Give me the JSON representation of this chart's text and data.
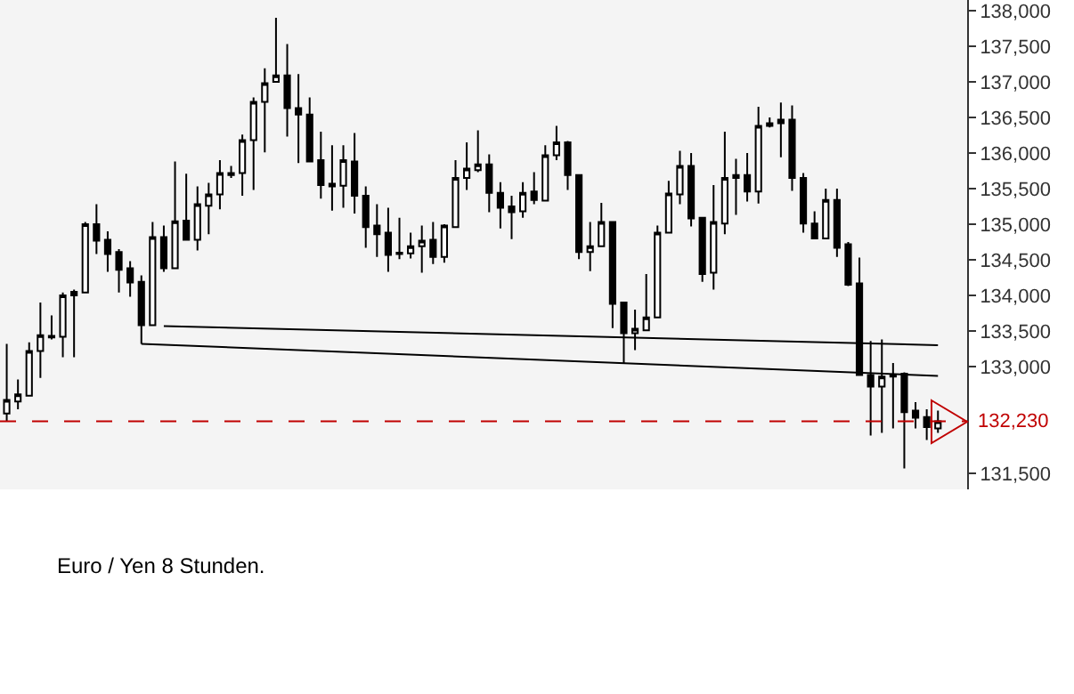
{
  "chart_data": {
    "type": "candlestick",
    "categories": [
      null,
      null,
      null,
      null,
      null,
      null,
      null,
      null,
      null,
      null,
      null,
      null,
      null,
      null,
      null,
      null,
      null,
      null,
      null,
      null,
      null,
      null,
      null,
      null,
      null,
      null,
      null,
      null,
      null,
      null,
      null,
      null,
      null,
      null,
      null,
      null,
      null,
      null,
      null,
      null,
      null,
      null,
      null,
      null,
      null,
      null,
      null,
      null,
      null,
      null,
      null,
      null,
      null,
      null,
      null,
      null,
      null,
      null,
      null,
      null,
      null,
      null,
      null,
      null,
      null,
      null,
      null,
      null,
      null,
      null,
      null,
      null,
      null,
      null,
      null,
      null,
      null,
      null,
      null,
      null,
      null,
      null,
      null,
      null
    ],
    "ohlc": [
      [
        132340,
        133320,
        132230,
        132530
      ],
      [
        132510,
        132820,
        132400,
        132610
      ],
      [
        132590,
        133340,
        132590,
        133220
      ],
      [
        133220,
        133900,
        132840,
        133440
      ],
      [
        133410,
        133720,
        133380,
        133430
      ],
      [
        133420,
        134040,
        133130,
        134000
      ],
      [
        134000,
        134080,
        133130,
        134050
      ],
      [
        134040,
        135030,
        134040,
        135000
      ],
      [
        135000,
        135280,
        134580,
        134770
      ],
      [
        134780,
        134900,
        134330,
        134580
      ],
      [
        134610,
        134650,
        134040,
        134360
      ],
      [
        134380,
        134480,
        133980,
        134180
      ],
      [
        134190,
        134280,
        133320,
        133580
      ],
      [
        133580,
        135030,
        133580,
        134820
      ],
      [
        134820,
        134980,
        134330,
        134380
      ],
      [
        134380,
        135880,
        134380,
        135040
      ],
      [
        135050,
        135710,
        134780,
        134780
      ],
      [
        134780,
        135530,
        134630,
        135280
      ],
      [
        135260,
        135580,
        134860,
        135420
      ],
      [
        135420,
        135900,
        135210,
        135720
      ],
      [
        135690,
        135820,
        135650,
        135720
      ],
      [
        135720,
        136260,
        135400,
        136180
      ],
      [
        136180,
        136780,
        135480,
        136720
      ],
      [
        136720,
        137190,
        136010,
        136980
      ],
      [
        137000,
        137900,
        137000,
        137090
      ],
      [
        137090,
        137530,
        136230,
        136630
      ],
      [
        136630,
        137110,
        135860,
        136540
      ],
      [
        136540,
        136780,
        135880,
        135880
      ],
      [
        135900,
        136300,
        135360,
        135550
      ],
      [
        135570,
        136110,
        135190,
        135530
      ],
      [
        135540,
        136110,
        135230,
        135900
      ],
      [
        135880,
        136280,
        135150,
        135400
      ],
      [
        135400,
        135530,
        134670,
        134960
      ],
      [
        134980,
        135280,
        134540,
        134860
      ],
      [
        134880,
        135230,
        134330,
        134570
      ],
      [
        134580,
        135090,
        134510,
        134600
      ],
      [
        134590,
        134880,
        134520,
        134690
      ],
      [
        134690,
        134980,
        134320,
        134770
      ],
      [
        134780,
        135030,
        134440,
        134540
      ],
      [
        134540,
        135000,
        134460,
        134980
      ],
      [
        134960,
        135900,
        134960,
        135650
      ],
      [
        135650,
        136150,
        135480,
        135780
      ],
      [
        135760,
        136320,
        135730,
        135840
      ],
      [
        135840,
        135980,
        135170,
        135440
      ],
      [
        135440,
        135590,
        134940,
        135230
      ],
      [
        135250,
        135400,
        134790,
        135170
      ],
      [
        135180,
        135590,
        135090,
        135440
      ],
      [
        135460,
        135730,
        135280,
        135340
      ],
      [
        135330,
        136110,
        135330,
        135970
      ],
      [
        135970,
        136380,
        135900,
        136150
      ],
      [
        136150,
        136170,
        135480,
        135690
      ],
      [
        135690,
        135690,
        134510,
        134610
      ],
      [
        134610,
        135030,
        134340,
        134690
      ],
      [
        134690,
        135300,
        134690,
        135030
      ],
      [
        135030,
        135030,
        133540,
        133880
      ],
      [
        133900,
        133900,
        133050,
        133470
      ],
      [
        133470,
        133800,
        133230,
        133530
      ],
      [
        133510,
        134300,
        133510,
        133690
      ],
      [
        133690,
        134980,
        133690,
        134880
      ],
      [
        134880,
        135610,
        134880,
        135430
      ],
      [
        135420,
        136030,
        135280,
        135820
      ],
      [
        135820,
        136000,
        134970,
        135080
      ],
      [
        135090,
        135090,
        134190,
        134300
      ],
      [
        134320,
        135550,
        134080,
        135030
      ],
      [
        135010,
        136300,
        134860,
        135650
      ],
      [
        135650,
        135920,
        135130,
        135690
      ],
      [
        135690,
        136000,
        135320,
        135460
      ],
      [
        135460,
        136650,
        135290,
        136380
      ],
      [
        136380,
        136500,
        136360,
        136420
      ],
      [
        136420,
        136710,
        135940,
        136470
      ],
      [
        136470,
        136670,
        135470,
        135650
      ],
      [
        135650,
        135720,
        134880,
        135010
      ],
      [
        135010,
        135180,
        134800,
        134800
      ],
      [
        134800,
        135500,
        134800,
        135340
      ],
      [
        135340,
        135500,
        134540,
        134670
      ],
      [
        134720,
        134750,
        134130,
        134150
      ],
      [
        134170,
        134530,
        132880,
        132880
      ],
      [
        132880,
        133360,
        132030,
        132720
      ],
      [
        132720,
        133380,
        132070,
        132860
      ],
      [
        132860,
        133050,
        132130,
        132880
      ],
      [
        132900,
        132920,
        131570,
        132360
      ],
      [
        132380,
        132500,
        132130,
        132280
      ],
      [
        132290,
        132400,
        131970,
        132150
      ],
      [
        132130,
        132380,
        132070,
        132230
      ]
    ],
    "series": [
      {
        "type": "line",
        "color": "#000000",
        "values": [
          null,
          null,
          null,
          null,
          null,
          null,
          null,
          null,
          null,
          null,
          null,
          null,
          null,
          null,
          133570,
          null,
          null,
          null,
          null,
          null,
          null,
          null,
          null,
          null,
          null,
          null,
          null,
          null,
          null,
          null,
          null,
          null,
          null,
          null,
          null,
          null,
          null,
          null,
          null,
          null,
          null,
          null,
          null,
          null,
          null,
          null,
          null,
          null,
          null,
          null,
          null,
          null,
          null,
          null,
          null,
          null,
          null,
          null,
          null,
          null,
          null,
          null,
          null,
          null,
          null,
          null,
          null,
          null,
          null,
          null,
          null,
          null,
          null,
          null,
          null,
          null,
          null,
          null,
          null,
          null,
          null,
          null,
          null,
          133300
        ]
      },
      {
        "type": "line",
        "color": "#000000",
        "values": [
          null,
          null,
          null,
          null,
          null,
          null,
          null,
          null,
          null,
          null,
          null,
          null,
          133320,
          null,
          null,
          null,
          null,
          null,
          null,
          null,
          null,
          null,
          null,
          null,
          null,
          null,
          null,
          null,
          null,
          null,
          null,
          null,
          null,
          null,
          null,
          null,
          null,
          null,
          null,
          null,
          null,
          null,
          null,
          null,
          null,
          null,
          null,
          null,
          null,
          null,
          null,
          null,
          null,
          null,
          null,
          null,
          null,
          null,
          null,
          null,
          null,
          null,
          null,
          null,
          null,
          null,
          null,
          null,
          null,
          null,
          null,
          null,
          null,
          null,
          null,
          null,
          null,
          null,
          null,
          null,
          null,
          null,
          null,
          132870
        ]
      }
    ],
    "ylim": [
      131275,
      138150
    ],
    "yticks": [
      {
        "value": 131500,
        "label": "131,500"
      },
      {
        "value": 133000,
        "label": "133,000"
      },
      {
        "value": 133500,
        "label": "133,500"
      },
      {
        "value": 134000,
        "label": "134,000"
      },
      {
        "value": 134500,
        "label": "134,500"
      },
      {
        "value": 135000,
        "label": "135,000"
      },
      {
        "value": 135500,
        "label": "135,500"
      },
      {
        "value": 136000,
        "label": "136,000"
      },
      {
        "value": 136500,
        "label": "136,500"
      },
      {
        "value": 137000,
        "label": "137,000"
      },
      {
        "value": 137500,
        "label": "137,500"
      },
      {
        "value": 138000,
        "label": "138,000"
      }
    ],
    "ref_lines": [
      {
        "axis": "y",
        "value": 132230,
        "label": "132,230",
        "color": "#c00000",
        "line_style": "dashed"
      }
    ],
    "tick_labels": "y",
    "annotations": [
      "Euro / Yen 8 Stunden."
    ]
  }
}
